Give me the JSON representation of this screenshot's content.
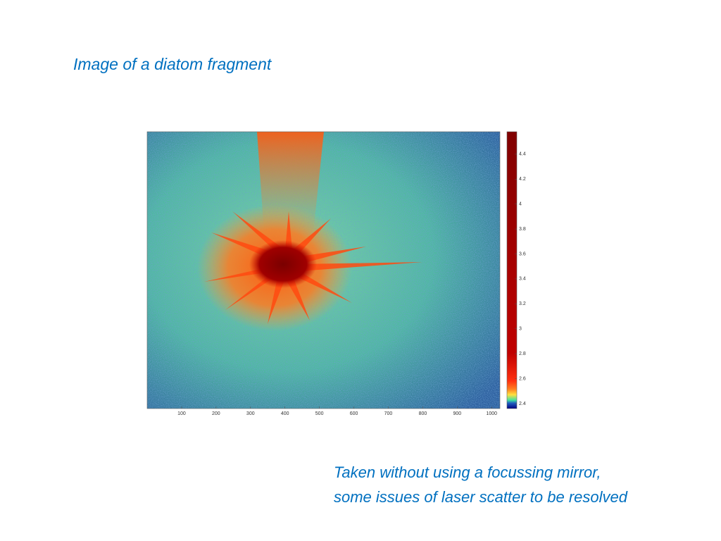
{
  "title": "Image of a diatom fragment",
  "caption": [
    "Taken without using a focussing mirror,",
    "some issues of laser scatter to be resolved"
  ],
  "figure": {
    "type": "heatmap",
    "xlim": [
      0,
      1024
    ],
    "xticks": [
      100,
      200,
      300,
      400,
      500,
      600,
      700,
      800,
      900,
      1000
    ],
    "clim": [
      2.36,
      4.58
    ],
    "cticks": [
      2.4,
      2.6,
      2.8,
      3,
      3.2,
      3.4,
      3.6,
      3.8,
      4,
      4.2,
      4.4
    ]
  }
}
